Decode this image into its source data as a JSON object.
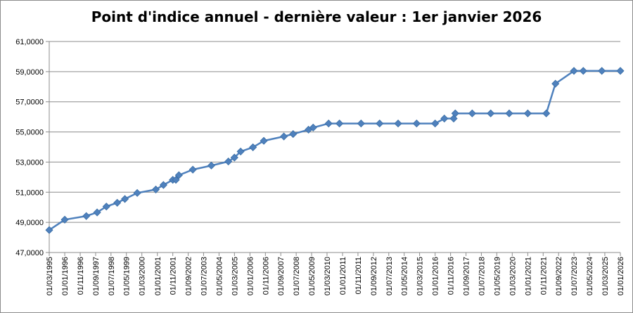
{
  "chart_data": {
    "type": "line",
    "title": "Point d'indice annuel - dernière valeur : 1er janvier 2026",
    "xlabel": "",
    "ylabel": "",
    "ylim": [
      47000,
      61000
    ],
    "y_ticks": [
      "47,0000",
      "49,0000",
      "51,0000",
      "53,0000",
      "55,0000",
      "57,0000",
      "59,0000",
      "61,0000"
    ],
    "x_ticks": [
      "01/03/1995",
      "01/01/1996",
      "01/11/1996",
      "01/09/1997",
      "01/07/1998",
      "01/05/1999",
      "01/03/2000",
      "01/01/2001",
      "01/11/2001",
      "01/09/2002",
      "01/07/2003",
      "01/05/2004",
      "01/03/2005",
      "01/01/2006",
      "01/11/2006",
      "01/09/2007",
      "01/07/2008",
      "01/05/2009",
      "01/03/2010",
      "01/01/2011",
      "01/11/2011",
      "01/09/2012",
      "01/07/2013",
      "01/05/2014",
      "01/03/2015",
      "01/01/2016",
      "01/11/2016",
      "01/09/2017",
      "01/07/2018",
      "01/05/2019",
      "01/03/2020",
      "01/01/2021",
      "01/11/2021",
      "01/09/2022",
      "01/07/2023",
      "01/05/2024",
      "01/03/2025",
      "01/01/2026"
    ],
    "x_range": [
      "1995-03-01",
      "2026-01-01"
    ],
    "grid": "horizontal",
    "line_color": "#4f81bd",
    "marker": "diamond",
    "series": [
      {
        "points": [
          {
            "x": "1995-03-01",
            "y": 48490
          },
          {
            "x": "1996-01-01",
            "y": 49180
          },
          {
            "x": "1997-03-01",
            "y": 49420
          },
          {
            "x": "1997-10-01",
            "y": 49660
          },
          {
            "x": "1998-04-01",
            "y": 50050
          },
          {
            "x": "1998-11-01",
            "y": 50300
          },
          {
            "x": "1999-04-01",
            "y": 50550
          },
          {
            "x": "1999-12-01",
            "y": 50950
          },
          {
            "x": "2000-12-01",
            "y": 51180
          },
          {
            "x": "2001-05-01",
            "y": 51480
          },
          {
            "x": "2001-11-01",
            "y": 51820
          },
          {
            "x": "2002-01-01",
            "y": 51820
          },
          {
            "x": "2002-03-01",
            "y": 52130
          },
          {
            "x": "2002-12-01",
            "y": 52500
          },
          {
            "x": "2003-12-01",
            "y": 52770
          },
          {
            "x": "2004-11-01",
            "y": 53040
          },
          {
            "x": "2005-03-01",
            "y": 53300
          },
          {
            "x": "2005-07-01",
            "y": 53700
          },
          {
            "x": "2006-03-01",
            "y": 53980
          },
          {
            "x": "2006-10-01",
            "y": 54410
          },
          {
            "x": "2007-11-01",
            "y": 54700
          },
          {
            "x": "2008-05-01",
            "y": 54860
          },
          {
            "x": "2009-03-01",
            "y": 55150
          },
          {
            "x": "2009-06-01",
            "y": 55290
          },
          {
            "x": "2010-04-01",
            "y": 55560
          },
          {
            "x": "2010-11-01",
            "y": 55560
          },
          {
            "x": "2012-01-01",
            "y": 55560
          },
          {
            "x": "2013-01-01",
            "y": 55560
          },
          {
            "x": "2014-01-01",
            "y": 55560
          },
          {
            "x": "2015-01-01",
            "y": 55560
          },
          {
            "x": "2016-01-01",
            "y": 55560
          },
          {
            "x": "2016-07-01",
            "y": 55890
          },
          {
            "x": "2017-01-01",
            "y": 55890
          },
          {
            "x": "2017-02-01",
            "y": 56230
          },
          {
            "x": "2018-01-01",
            "y": 56230
          },
          {
            "x": "2019-01-01",
            "y": 56230
          },
          {
            "x": "2020-01-01",
            "y": 56230
          },
          {
            "x": "2021-01-01",
            "y": 56230
          },
          {
            "x": "2022-01-01",
            "y": 56230
          },
          {
            "x": "2022-07-01",
            "y": 58200
          },
          {
            "x": "2023-07-01",
            "y": 59050
          },
          {
            "x": "2024-01-01",
            "y": 59050
          },
          {
            "x": "2025-01-01",
            "y": 59050
          },
          {
            "x": "2026-01-01",
            "y": 59050
          }
        ]
      }
    ]
  }
}
